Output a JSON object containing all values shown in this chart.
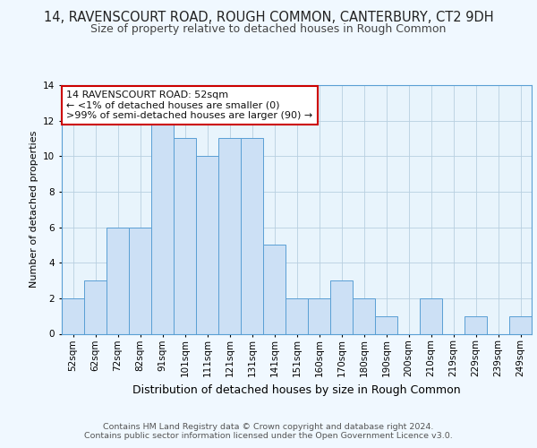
{
  "title": "14, RAVENSCOURT ROAD, ROUGH COMMON, CANTERBURY, CT2 9DH",
  "subtitle": "Size of property relative to detached houses in Rough Common",
  "xlabel": "Distribution of detached houses by size in Rough Common",
  "ylabel": "Number of detached properties",
  "bar_labels": [
    "52sqm",
    "62sqm",
    "72sqm",
    "82sqm",
    "91sqm",
    "101sqm",
    "111sqm",
    "121sqm",
    "131sqm",
    "141sqm",
    "151sqm",
    "160sqm",
    "170sqm",
    "180sqm",
    "190sqm",
    "200sqm",
    "210sqm",
    "219sqm",
    "229sqm",
    "239sqm",
    "249sqm"
  ],
  "bar_values": [
    2,
    3,
    6,
    6,
    12,
    11,
    10,
    11,
    11,
    5,
    2,
    2,
    3,
    2,
    1,
    0,
    2,
    0,
    1,
    0,
    1
  ],
  "bar_color": "#cce0f5",
  "bar_edge_color": "#5a9fd4",
  "background_color": "#f0f8ff",
  "plot_bg_color": "#e8f4fc",
  "annotation_box_text": "14 RAVENSCOURT ROAD: 52sqm\n← <1% of detached houses are smaller (0)\n>99% of semi-detached houses are larger (90) →",
  "annotation_box_edge_color": "#cc0000",
  "footer_line1": "Contains HM Land Registry data © Crown copyright and database right 2024.",
  "footer_line2": "Contains public sector information licensed under the Open Government Licence v3.0.",
  "ylim": [
    0,
    14
  ],
  "yticks": [
    0,
    2,
    4,
    6,
    8,
    10,
    12,
    14
  ],
  "title_fontsize": 10.5,
  "subtitle_fontsize": 9,
  "xlabel_fontsize": 9,
  "ylabel_fontsize": 8,
  "tick_fontsize": 7.5,
  "footer_fontsize": 6.8,
  "annotation_fontsize": 8
}
